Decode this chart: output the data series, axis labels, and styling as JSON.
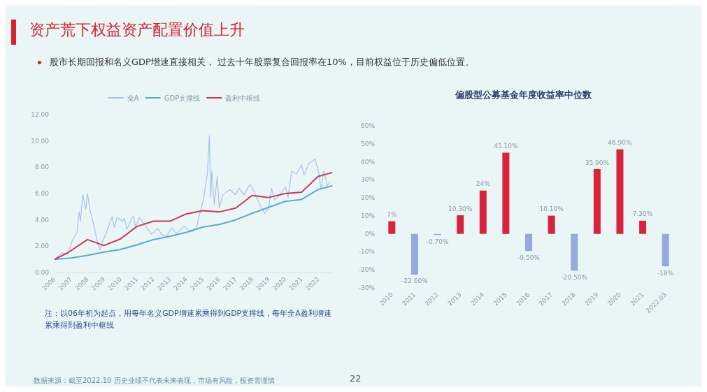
{
  "chart_data": [
    {
      "type": "line",
      "title": "资产荒下权益资产配置价值上升",
      "subtitle": "股市长期回报和名义GDP增速直接相关， 过去十年股票复合回报率在10%，目前权益位于历史偏低位置。",
      "annotations": [
        "注：以06年初为起点，用每年名义GDP增速累乘得到GDP支撑线，每年全A盈利增速累乘得到盈利中枢线",
        "数据来源：截至2022.10 历史业绩不代表未来表现，市场有风险，投资需谨慎",
        "22"
      ],
      "legend": "top",
      "xlim": [
        2006,
        2022.9
      ],
      "xticks": [
        2006,
        2007,
        2008,
        2009,
        2010,
        2011,
        2012,
        2013,
        2014,
        2015,
        2016,
        2017,
        2018,
        2019,
        2020,
        2021,
        2022
      ],
      "ylim": [
        0,
        12
      ],
      "yticks": [
        {
          "value": 0,
          "label": "0.00"
        },
        {
          "value": 2,
          "label": "2.00"
        },
        {
          "value": 4,
          "label": "4.00"
        },
        {
          "value": 6,
          "label": "6.00"
        },
        {
          "value": 8,
          "label": "8.00"
        },
        {
          "value": 10,
          "label": "10.00"
        },
        {
          "value": 12,
          "label": "12.00"
        }
      ],
      "series": [
        {
          "name": "全A",
          "color": "#a9c3ea",
          "x": [
            2006,
            2006.45,
            2006.8,
            2007.1,
            2007.35,
            2007.5,
            2007.57,
            2007.72,
            2007.9,
            2008.0,
            2008.15,
            2008.4,
            2008.55,
            2008.76,
            2008.9,
            2009.13,
            2009.5,
            2009.63,
            2009.8,
            2010.1,
            2010.25,
            2010.4,
            2010.78,
            2010.93,
            2011.15,
            2011.45,
            2011.6,
            2011.9,
            2012.27,
            2012.5,
            2012.8,
            2013.1,
            2013.4,
            2013.85,
            2014.3,
            2014.6,
            2014.73,
            2015.03,
            2015.28,
            2015.4,
            2015.48,
            2015.55,
            2015.7,
            2015.88,
            2016.0,
            2016.22,
            2016.67,
            2016.97,
            2017.2,
            2017.5,
            2017.87,
            2018.1,
            2018.46,
            2018.76,
            2018.98,
            2019.18,
            2019.36,
            2019.73,
            2020.03,
            2020.18,
            2020.4,
            2020.7,
            2021.0,
            2021.15,
            2021.45,
            2021.82,
            2022.04,
            2022.19,
            2022.34,
            2022.57,
            2022.72
          ],
          "values": [
            1.0,
            1.5,
            1.4,
            2.5,
            3.0,
            4.6,
            3.9,
            5.9,
            4.8,
            6.0,
            4.8,
            3.5,
            2.6,
            1.75,
            2.3,
            3.0,
            4.25,
            3.4,
            4.2,
            3.9,
            4.1,
            3.3,
            4.3,
            3.5,
            4.15,
            3.7,
            3.4,
            2.9,
            3.35,
            2.9,
            2.7,
            3.4,
            2.95,
            3.5,
            3.1,
            3.3,
            4.0,
            5.5,
            7.5,
            10.4,
            5.7,
            7.7,
            5.2,
            7.3,
            4.9,
            5.9,
            6.3,
            5.9,
            6.4,
            5.9,
            6.7,
            6.2,
            5.2,
            4.5,
            4.8,
            6.4,
            5.5,
            6.0,
            6.5,
            5.7,
            7.7,
            7.5,
            8.2,
            7.4,
            8.3,
            8.6,
            7.6,
            6.3,
            7.7,
            6.6,
            6.9
          ]
        },
        {
          "name": "GDP支撑线",
          "color": "#5aa9d6",
          "x": [
            2006,
            2007,
            2008,
            2009,
            2010,
            2011,
            2012,
            2013,
            2014,
            2015,
            2016,
            2017,
            2018,
            2019,
            2020,
            2021,
            2022,
            2022.87
          ],
          "values": [
            1.0,
            1.1,
            1.3,
            1.55,
            1.75,
            2.1,
            2.5,
            2.75,
            3.05,
            3.45,
            3.65,
            4.0,
            4.5,
            4.95,
            5.4,
            5.55,
            6.3,
            6.6
          ]
        },
        {
          "name": "盈利中枢线",
          "color": "#c8385a",
          "x": [
            2006,
            2006.8,
            2008,
            2009,
            2010,
            2011,
            2012,
            2013,
            2014,
            2015,
            2016,
            2017,
            2018,
            2019,
            2020,
            2021,
            2022,
            2022.87
          ],
          "values": [
            1.0,
            1.5,
            2.5,
            2.05,
            2.55,
            3.5,
            3.9,
            3.9,
            4.45,
            4.7,
            4.6,
            4.9,
            5.85,
            5.7,
            6.0,
            6.1,
            7.3,
            7.6
          ]
        }
      ]
    },
    {
      "type": "bar",
      "title": "偏股型公募基金年度收益率中位数",
      "categories": [
        "2010",
        "2011",
        "2012",
        "2013",
        "2014",
        "2015",
        "2016",
        "2017",
        "2018",
        "2019",
        "2020",
        "2021",
        "2022.03"
      ],
      "values": [
        7,
        -22.6,
        -0.7,
        10.3,
        24,
        45.1,
        -9.5,
        10.1,
        -20.5,
        35.9,
        46.9,
        7.3,
        -18
      ],
      "colors": [
        "#d9233b",
        "#97a9dc",
        "#97a9dc",
        "#d9233b",
        "#d9233b",
        "#d9233b",
        "#97a9dc",
        "#d9233b",
        "#97a9dc",
        "#d9233b",
        "#d9233b",
        "#d9233b",
        "#97a9dc"
      ],
      "value_labels": [
        "7%",
        "-22.60%",
        "-0.70%",
        "10.30%",
        "24%",
        "45.10%",
        "-9.50%",
        "10.10%",
        "-20.50%",
        "35.90%",
        "46.90%",
        "7.30%",
        "-18%"
      ],
      "ylim": [
        -30,
        60
      ],
      "yticks": [
        {
          "value": -30,
          "label": "-30%"
        },
        {
          "value": -20,
          "label": "-20%"
        },
        {
          "value": -10,
          "label": "-10%"
        },
        {
          "value": 0,
          "label": "0%"
        },
        {
          "value": 10,
          "label": "10%"
        },
        {
          "value": 20,
          "label": "20%"
        },
        {
          "value": 30,
          "label": "30%"
        },
        {
          "value": 40,
          "label": "40%"
        },
        {
          "value": 50,
          "label": "50%"
        },
        {
          "value": 60,
          "label": "60%"
        }
      ]
    }
  ]
}
